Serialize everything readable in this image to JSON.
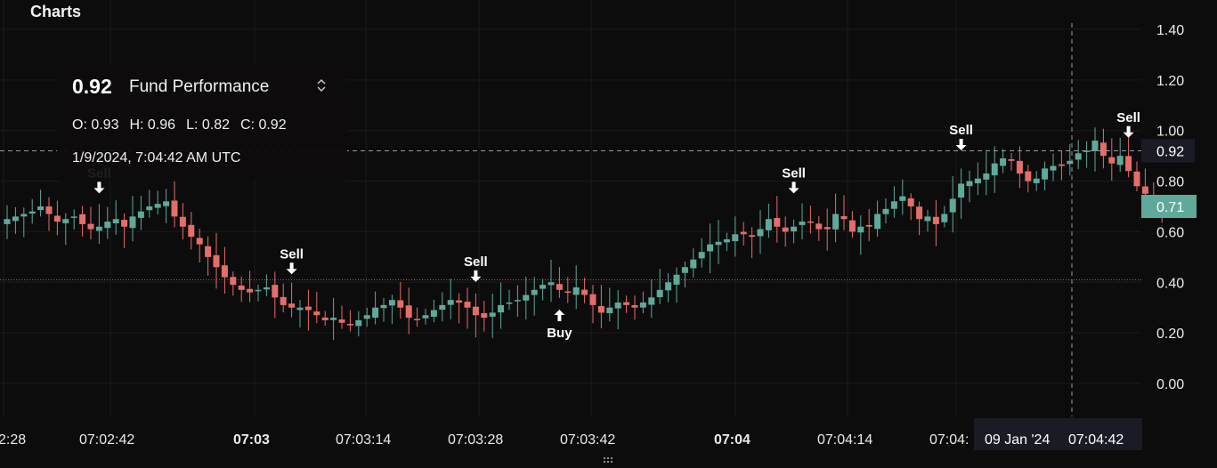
{
  "panel": {
    "title": "Charts"
  },
  "legend": {
    "price": "0.92",
    "name": "Fund Performance",
    "open": "O: 0.93",
    "high": "H: 0.96",
    "low": "L: 0.82",
    "close": "C: 0.92",
    "timestamp": "1/9/2024, 7:04:42 AM UTC"
  },
  "crosshair": {
    "price_label": "0.92",
    "time_label": "09 Jan '24",
    "time_label_2": "07:04:42"
  },
  "last_price": {
    "label": "0.71",
    "color": "#5fa99a"
  },
  "colors": {
    "up": "#5fa99a",
    "down": "#e46e6a",
    "reference_line": "#c25852"
  },
  "chart_data": {
    "type": "candlestick",
    "title": "Fund Performance",
    "ylim": [
      -0.16,
      1.47
    ],
    "yticks": [
      1.4,
      1.2,
      1.0,
      0.8,
      0.6,
      0.4,
      0.2,
      0.0
    ],
    "ytick_labels": [
      "1.40",
      "1.20",
      "1.00",
      "0.80",
      "0.60",
      "0.40",
      "0.20",
      "0.00"
    ],
    "xtick_labels": [
      "2:28",
      "07:02:42",
      "07:03",
      "07:03:14",
      "07:03:28",
      "07:03:42",
      "07:04",
      "07:04:14",
      "07:04:"
    ],
    "xtick_bold": [
      false,
      false,
      true,
      false,
      false,
      false,
      true,
      false,
      false
    ],
    "reference_line": 0.41,
    "crosshair_value": 0.92,
    "grid": true,
    "closes": [
      0.65,
      0.66,
      0.67,
      0.68,
      0.7,
      0.67,
      0.64,
      0.65,
      0.66,
      0.63,
      0.61,
      0.62,
      0.64,
      0.65,
      0.62,
      0.66,
      0.68,
      0.7,
      0.71,
      0.72,
      0.66,
      0.62,
      0.58,
      0.55,
      0.5,
      0.46,
      0.42,
      0.39,
      0.37,
      0.36,
      0.37,
      0.38,
      0.34,
      0.31,
      0.3,
      0.3,
      0.29,
      0.27,
      0.25,
      0.26,
      0.24,
      0.23,
      0.25,
      0.27,
      0.3,
      0.31,
      0.33,
      0.3,
      0.26,
      0.25,
      0.27,
      0.29,
      0.31,
      0.33,
      0.32,
      0.3,
      0.27,
      0.26,
      0.28,
      0.31,
      0.32,
      0.33,
      0.35,
      0.37,
      0.39,
      0.4,
      0.37,
      0.36,
      0.38,
      0.35,
      0.31,
      0.28,
      0.3,
      0.32,
      0.31,
      0.3,
      0.32,
      0.34,
      0.37,
      0.4,
      0.43,
      0.46,
      0.49,
      0.52,
      0.55,
      0.56,
      0.57,
      0.59,
      0.59,
      0.58,
      0.61,
      0.65,
      0.62,
      0.6,
      0.62,
      0.64,
      0.64,
      0.61,
      0.61,
      0.67,
      0.65,
      0.6,
      0.62,
      0.62,
      0.67,
      0.69,
      0.72,
      0.74,
      0.7,
      0.65,
      0.66,
      0.63,
      0.67,
      0.73,
      0.79,
      0.8,
      0.81,
      0.83,
      0.87,
      0.89,
      0.88,
      0.83,
      0.8,
      0.81,
      0.85,
      0.86,
      0.86,
      0.88,
      0.91,
      0.92,
      0.96,
      0.9,
      0.87,
      0.9,
      0.84,
      0.78,
      0.75,
      0.71,
      0.71
    ],
    "buy_signals": [
      {
        "index": 66,
        "label": "Buy"
      }
    ],
    "sell_signals": [
      {
        "index": 15,
        "label": "Sell"
      },
      {
        "index": 41,
        "label": "Sell"
      },
      {
        "index": 66,
        "label": "Sell",
        "skip": true
      },
      {
        "index": 63,
        "label": "Sell",
        "skip": true
      },
      {
        "index": 94,
        "label": "Sell",
        "skip": true
      }
    ],
    "sell_markers": [
      {
        "index": 11,
        "label": "Sell"
      },
      {
        "index": 34,
        "label": "Sell"
      },
      {
        "index": 56,
        "label": "Sell"
      },
      {
        "index": 94,
        "label": "Sell"
      },
      {
        "index": 114,
        "label": "Sell"
      },
      {
        "index": 134,
        "label": "Sell"
      }
    ]
  }
}
